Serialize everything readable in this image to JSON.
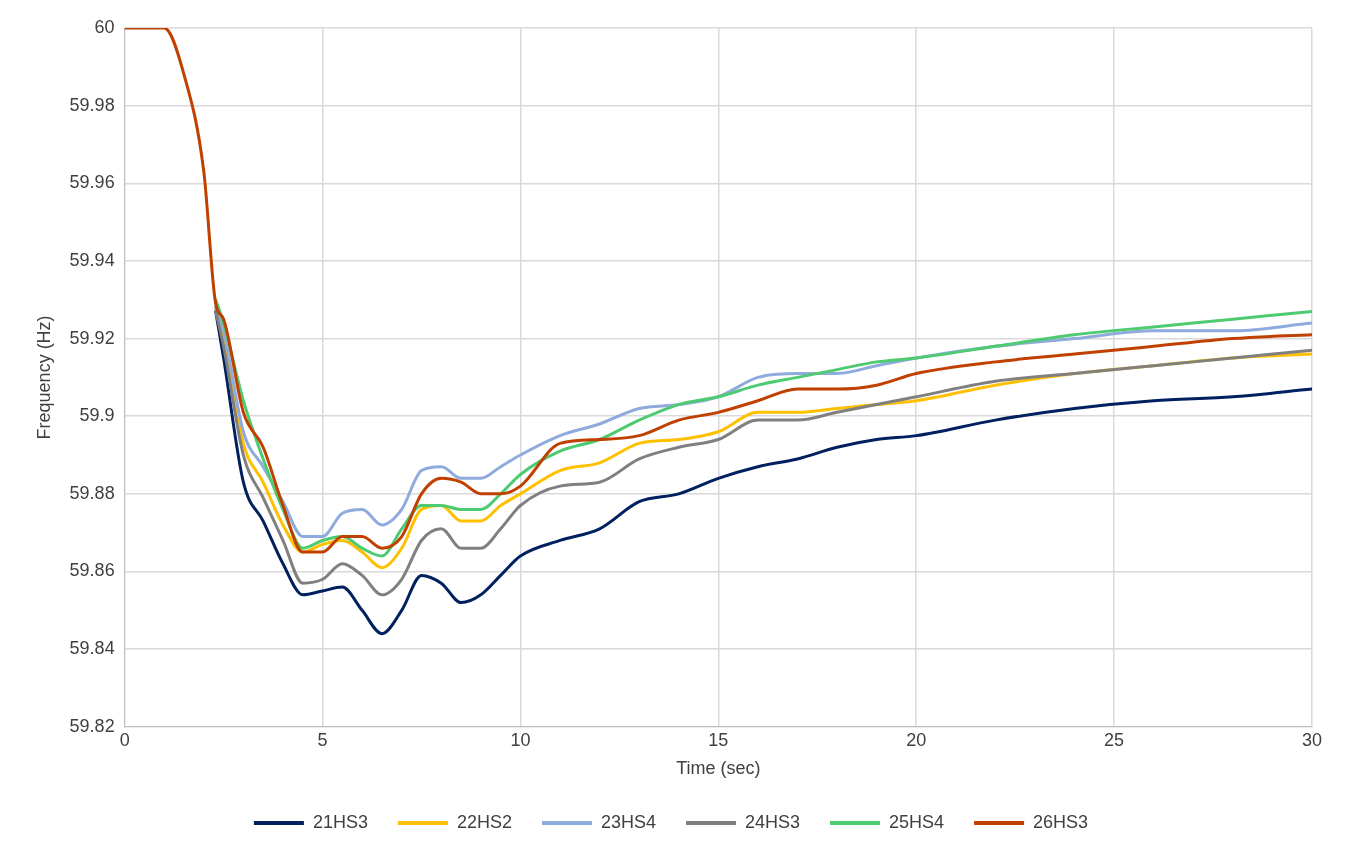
{
  "chart_data": {
    "type": "line",
    "xlabel": "Time (sec)",
    "ylabel": "Frequency (Hz)",
    "x": [
      0,
      1,
      1.5,
      2,
      2.3,
      2.5,
      3,
      3.5,
      4,
      4.5,
      5,
      5.5,
      6,
      6.5,
      7,
      7.5,
      8,
      8.5,
      9,
      9.5,
      10,
      11,
      12,
      13,
      14,
      15,
      16,
      17,
      18,
      19,
      20,
      22,
      24,
      26,
      28,
      30
    ],
    "xlim": [
      0,
      30
    ],
    "xticks": [
      0,
      5,
      10,
      15,
      20,
      25,
      30
    ],
    "ylim": [
      59.82,
      60
    ],
    "yticks": [
      59.82,
      59.84,
      59.86,
      59.88,
      59.9,
      59.92,
      59.94,
      59.96,
      59.98,
      60
    ],
    "grid": true,
    "legend": "bottom",
    "marker": "none",
    "line_style": "solid",
    "series": [
      {
        "name": "21HS3",
        "color": "#002060",
        "values": [
          null,
          null,
          null,
          null,
          59.927,
          59.915,
          59.883,
          59.873,
          59.862,
          59.854,
          59.855,
          59.856,
          59.85,
          59.844,
          59.85,
          59.859,
          59.857,
          59.852,
          59.854,
          59.859,
          59.864,
          59.868,
          59.871,
          59.878,
          59.88,
          59.884,
          59.887,
          59.889,
          59.892,
          59.894,
          59.895,
          59.899,
          59.902,
          59.904,
          59.905,
          59.907
        ]
      },
      {
        "name": "22HS2",
        "color": "#ffc000",
        "values": [
          null,
          null,
          null,
          null,
          59.928,
          59.921,
          59.893,
          59.883,
          59.872,
          59.865,
          59.867,
          59.868,
          59.865,
          59.861,
          59.866,
          59.876,
          59.877,
          59.873,
          59.873,
          59.877,
          59.88,
          59.886,
          59.888,
          59.893,
          59.894,
          59.896,
          59.901,
          59.901,
          59.902,
          59.903,
          59.904,
          59.908,
          59.911,
          59.913,
          59.915,
          59.916
        ]
      },
      {
        "name": "23HS4",
        "color": "#8faadc",
        "values": [
          null,
          null,
          null,
          null,
          59.928,
          59.922,
          59.896,
          59.887,
          59.878,
          59.869,
          59.869,
          59.875,
          59.876,
          59.872,
          59.876,
          59.886,
          59.887,
          59.884,
          59.884,
          59.887,
          59.89,
          59.895,
          59.898,
          59.902,
          59.903,
          59.905,
          59.91,
          59.911,
          59.911,
          59.913,
          59.915,
          59.918,
          59.92,
          59.922,
          59.922,
          59.924
        ]
      },
      {
        "name": "24HS3",
        "color": "#808080",
        "values": [
          null,
          null,
          null,
          null,
          59.927,
          59.918,
          59.89,
          59.879,
          59.868,
          59.857,
          59.858,
          59.862,
          59.859,
          59.854,
          59.858,
          59.868,
          59.871,
          59.866,
          59.866,
          59.871,
          59.877,
          59.882,
          59.883,
          59.889,
          59.892,
          59.894,
          59.899,
          59.899,
          59.901,
          59.903,
          59.905,
          59.909,
          59.911,
          59.913,
          59.915,
          59.917
        ]
      },
      {
        "name": "25HS4",
        "color": "#4ecb71",
        "values": [
          null,
          null,
          null,
          null,
          59.93,
          59.924,
          59.904,
          59.889,
          59.876,
          59.866,
          59.868,
          59.869,
          59.866,
          59.864,
          59.871,
          59.877,
          59.877,
          59.876,
          59.876,
          59.88,
          59.885,
          59.891,
          59.894,
          59.899,
          59.903,
          59.905,
          59.908,
          59.91,
          59.912,
          59.914,
          59.915,
          59.918,
          59.921,
          59.923,
          59.925,
          59.927
        ]
      },
      {
        "name": "26HS3",
        "color": "#c04000",
        "values": [
          60,
          60,
          59.988,
          59.963,
          59.929,
          59.925,
          59.901,
          59.892,
          59.877,
          59.865,
          59.865,
          59.869,
          59.869,
          59.866,
          59.869,
          59.88,
          59.884,
          59.883,
          59.88,
          59.88,
          59.882,
          59.893,
          59.894,
          59.895,
          59.899,
          59.901,
          59.904,
          59.907,
          59.907,
          59.908,
          59.911,
          59.914,
          59.916,
          59.918,
          59.92,
          59.921
        ]
      }
    ]
  }
}
